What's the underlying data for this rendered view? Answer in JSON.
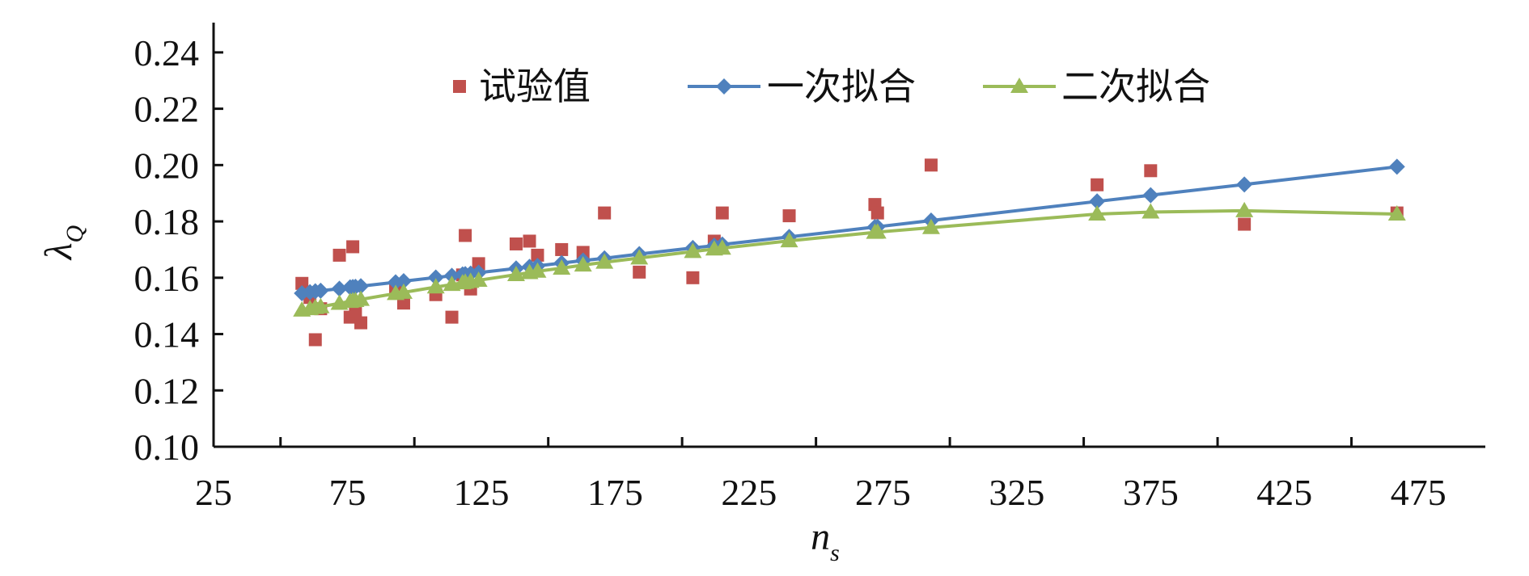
{
  "chart_data": {
    "type": "scatter",
    "xlabel": "n",
    "xlabel_sub": "s",
    "ylabel": "λ",
    "ylabel_sub": "Q",
    "xlim": [
      25,
      500
    ],
    "ylim": [
      0.1,
      0.25
    ],
    "xticks": [
      "25",
      "75",
      "125",
      "175",
      "225",
      "275",
      "325",
      "375",
      "425",
      "475"
    ],
    "yticks": [
      "0.10",
      "0.12",
      "0.14",
      "0.16",
      "0.18",
      "0.20",
      "0.22",
      "0.24"
    ],
    "grid": false,
    "legend_position": "top",
    "series": [
      {
        "name": "试验值",
        "kind": "markers",
        "marker": "square",
        "color": "#C0504D",
        "x": [
          58,
          61,
          63,
          65,
          72,
          76,
          77,
          78,
          80,
          93,
          96,
          108,
          114,
          118,
          119,
          121,
          124,
          138,
          143,
          146,
          155,
          163,
          171,
          184,
          204,
          212,
          215,
          240,
          272,
          273,
          293,
          355,
          375,
          410,
          467
        ],
        "y": [
          0.158,
          0.153,
          0.138,
          0.149,
          0.168,
          0.146,
          0.171,
          0.148,
          0.144,
          0.156,
          0.151,
          0.154,
          0.146,
          0.161,
          0.175,
          0.156,
          0.165,
          0.172,
          0.173,
          0.168,
          0.17,
          0.169,
          0.183,
          0.162,
          0.16,
          0.173,
          0.183,
          0.182,
          0.186,
          0.183,
          0.2,
          0.193,
          0.198,
          0.179,
          0.183
        ]
      },
      {
        "name": "一次拟合",
        "kind": "line-markers",
        "marker": "diamond",
        "color": "#4F81BD",
        "x": [
          58,
          61,
          63,
          65,
          72,
          76,
          77,
          78,
          80,
          93,
          96,
          108,
          114,
          118,
          119,
          121,
          124,
          138,
          143,
          146,
          155,
          163,
          171,
          184,
          204,
          212,
          215,
          240,
          272,
          273,
          293,
          355,
          375,
          410,
          467
        ],
        "y": [
          0.1545,
          0.1549,
          0.1552,
          0.1554,
          0.1561,
          0.1566,
          0.1567,
          0.1568,
          0.157,
          0.1584,
          0.1588,
          0.1601,
          0.1607,
          0.1612,
          0.1613,
          0.1615,
          0.1618,
          0.1633,
          0.1639,
          0.1642,
          0.1652,
          0.1661,
          0.1669,
          0.1684,
          0.1706,
          0.1714,
          0.1718,
          0.1745,
          0.178,
          0.1781,
          0.1803,
          0.1871,
          0.1893,
          0.1931,
          0.1994
        ]
      },
      {
        "name": "二次拟合",
        "kind": "line-markers",
        "marker": "triangle",
        "color": "#9BBB59",
        "x": [
          58,
          61,
          63,
          65,
          72,
          76,
          77,
          78,
          80,
          93,
          96,
          108,
          114,
          118,
          119,
          121,
          124,
          138,
          143,
          146,
          155,
          163,
          171,
          184,
          204,
          212,
          215,
          240,
          272,
          273,
          293,
          355,
          375,
          410,
          467
        ],
        "y": [
          0.1485,
          0.149,
          0.1494,
          0.1497,
          0.1509,
          0.1516,
          0.1518,
          0.1519,
          0.1523,
          0.1544,
          0.1548,
          0.1567,
          0.1576,
          0.1582,
          0.1584,
          0.1587,
          0.1591,
          0.1611,
          0.1618,
          0.1623,
          0.1634,
          0.1645,
          0.1655,
          0.167,
          0.1693,
          0.1702,
          0.1705,
          0.1731,
          0.1761,
          0.1762,
          0.1778,
          0.1826,
          0.1833,
          0.1838,
          0.1826
        ]
      }
    ]
  }
}
